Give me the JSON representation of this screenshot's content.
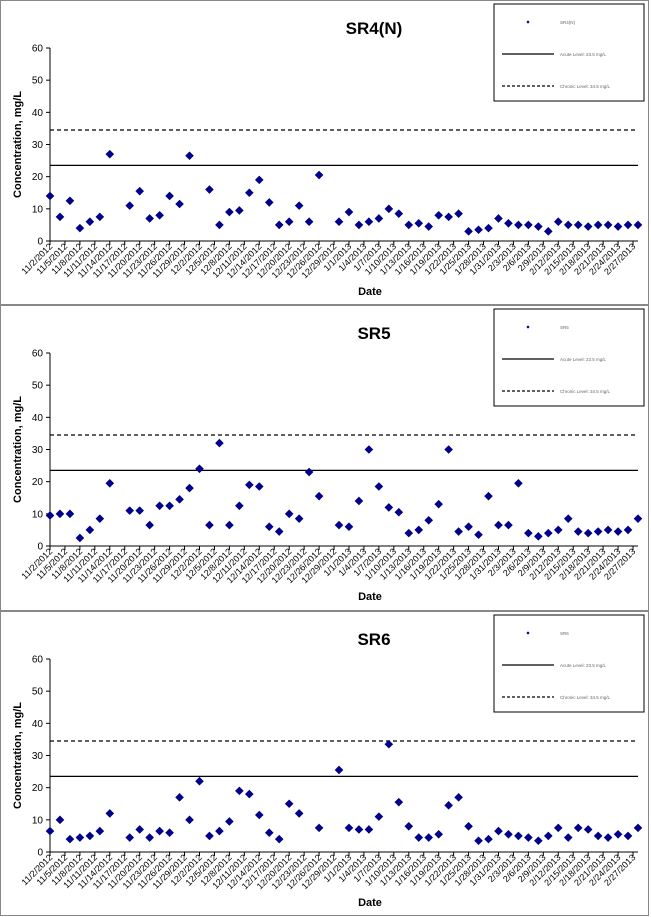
{
  "chart_data": [
    {
      "type": "scatter",
      "title": "SR4(N)",
      "xlabel": "Date",
      "ylabel": "Concentration, mg/L",
      "ylim": [
        0,
        60
      ],
      "yticks": [
        0,
        10,
        20,
        30,
        40,
        50,
        60
      ],
      "xtick_labels": [
        "11/2/2012",
        "11/5/2012",
        "11/8/2012",
        "11/11/2012",
        "11/14/2012",
        "11/17/2012",
        "11/20/2012",
        "11/23/2012",
        "11/26/2012",
        "11/29/2012",
        "12/2/2012",
        "12/5/2012",
        "12/8/2012",
        "12/11/2012",
        "12/14/2012",
        "12/17/2012",
        "12/20/2012",
        "12/23/2012",
        "12/26/2012",
        "12/29/2012",
        "1/1/2013",
        "1/4/2013",
        "1/7/2013",
        "1/10/2013",
        "1/13/2013",
        "1/16/2013",
        "1/19/2013",
        "1/22/2013",
        "1/25/2013",
        "1/28/2013",
        "1/31/2013",
        "2/3/2013",
        "2/6/2013",
        "2/9/2013",
        "2/12/2013",
        "2/15/2013",
        "2/18/2013",
        "2/21/2013",
        "2/24/2013",
        "2/27/2013"
      ],
      "legend": {
        "position": "top-right",
        "entries": [
          "SR4(N)",
          "Acute Level: 23.5 mg/L",
          "Chronic Level: 34.5 mg/L"
        ]
      },
      "reference_lines": [
        {
          "value": 23.5,
          "style": "solid"
        },
        {
          "value": 34.5,
          "style": "dashed"
        }
      ],
      "series": [
        {
          "name": "SR4(N)",
          "marker": "diamond",
          "color": "#00008b",
          "x": [
            "11/2/2012",
            "11/4/2012",
            "11/6/2012",
            "11/8/2012",
            "11/10/2012",
            "11/12/2012",
            "11/14/2012",
            "11/18/2012",
            "11/20/2012",
            "11/22/2012",
            "11/24/2012",
            "11/26/2012",
            "11/28/2012",
            "11/30/2012",
            "12/4/2012",
            "12/6/2012",
            "12/8/2012",
            "12/10/2012",
            "12/12/2012",
            "12/14/2012",
            "12/16/2012",
            "12/18/2012",
            "12/20/2012",
            "12/22/2012",
            "12/24/2012",
            "12/26/2012",
            "12/30/2012",
            "1/1/2013",
            "1/3/2013",
            "1/5/2013",
            "1/7/2013",
            "1/9/2013",
            "1/11/2013",
            "1/13/2013",
            "1/15/2013",
            "1/17/2013",
            "1/19/2013",
            "1/21/2013",
            "1/23/2013",
            "1/25/2013",
            "1/27/2013",
            "1/29/2013",
            "1/31/2013",
            "2/2/2013",
            "2/4/2013",
            "2/6/2013",
            "2/8/2013",
            "2/10/2013",
            "2/12/2013",
            "2/14/2013",
            "2/16/2013",
            "2/18/2013",
            "2/20/2013",
            "2/22/2013",
            "2/24/2013",
            "2/26/2013",
            "2/28/2013"
          ],
          "y": [
            14,
            7.5,
            12.5,
            4,
            6,
            7.5,
            27,
            11,
            15.5,
            7,
            8,
            14,
            11.5,
            26.5,
            16,
            5,
            9,
            9.5,
            15,
            19,
            12,
            5,
            6,
            11,
            6,
            20.5,
            6,
            9,
            5,
            6,
            7,
            10,
            8.5,
            5,
            5.5,
            4.5,
            8,
            7.5,
            8.5,
            3,
            3.5,
            4,
            7,
            5.5,
            5,
            5,
            4.5,
            3,
            6,
            5,
            5,
            4.5,
            5,
            5,
            4.5,
            5,
            5
          ]
        }
      ]
    },
    {
      "type": "scatter",
      "title": "SR5",
      "xlabel": "Date",
      "ylabel": "Concentration, mg/L",
      "ylim": [
        0,
        60
      ],
      "yticks": [
        0,
        10,
        20,
        30,
        40,
        50,
        60
      ],
      "xtick_labels": [
        "11/2/2012",
        "11/5/2012",
        "11/8/2012",
        "11/11/2012",
        "11/14/2012",
        "11/17/2012",
        "11/20/2012",
        "11/23/2012",
        "11/26/2012",
        "11/29/2012",
        "12/2/2012",
        "12/5/2012",
        "12/8/2012",
        "12/11/2012",
        "12/14/2012",
        "12/17/2012",
        "12/20/2012",
        "12/23/2012",
        "12/26/2012",
        "12/29/2012",
        "1/1/2013",
        "1/4/2013",
        "1/7/2013",
        "1/10/2013",
        "1/13/2013",
        "1/16/2013",
        "1/19/2013",
        "1/22/2013",
        "1/25/2013",
        "1/28/2013",
        "1/31/2013",
        "2/3/2013",
        "2/6/2013",
        "2/9/2013",
        "2/12/2013",
        "2/15/2013",
        "2/18/2013",
        "2/21/2013",
        "2/24/2013",
        "2/27/2013"
      ],
      "legend": {
        "position": "top-right",
        "entries": [
          "SR5",
          "Acute Level: 23.5 mg/L",
          "Chronic Level: 34.5 mg/L"
        ]
      },
      "reference_lines": [
        {
          "value": 23.5,
          "style": "solid"
        },
        {
          "value": 34.5,
          "style": "dashed"
        }
      ],
      "series": [
        {
          "name": "SR5",
          "marker": "diamond",
          "color": "#00008b",
          "x": [
            "11/2/2012",
            "11/4/2012",
            "11/6/2012",
            "11/8/2012",
            "11/10/2012",
            "11/12/2012",
            "11/14/2012",
            "11/18/2012",
            "11/20/2012",
            "11/22/2012",
            "11/24/2012",
            "11/26/2012",
            "11/28/2012",
            "11/30/2012",
            "12/2/2012",
            "12/4/2012",
            "12/6/2012",
            "12/8/2012",
            "12/10/2012",
            "12/12/2012",
            "12/14/2012",
            "12/16/2012",
            "12/18/2012",
            "12/20/2012",
            "12/22/2012",
            "12/24/2012",
            "12/26/2012",
            "12/30/2012",
            "1/1/2013",
            "1/3/2013",
            "1/5/2013",
            "1/7/2013",
            "1/9/2013",
            "1/11/2013",
            "1/13/2013",
            "1/15/2013",
            "1/17/2013",
            "1/19/2013",
            "1/21/2013",
            "1/23/2013",
            "1/25/2013",
            "1/27/2013",
            "1/29/2013",
            "1/31/2013",
            "2/2/2013",
            "2/4/2013",
            "2/6/2013",
            "2/8/2013",
            "2/10/2013",
            "2/12/2013",
            "2/14/2013",
            "2/16/2013",
            "2/18/2013",
            "2/20/2013",
            "2/22/2013",
            "2/24/2013",
            "2/26/2013",
            "2/28/2013"
          ],
          "y": [
            9.5,
            10,
            10,
            2.5,
            5,
            8.5,
            19.5,
            11,
            11,
            6.5,
            12.5,
            12.5,
            14.5,
            18,
            24,
            6.5,
            32,
            6.5,
            12.5,
            19,
            18.5,
            6,
            4.5,
            10,
            8.5,
            23,
            15.5,
            6.5,
            6,
            14,
            30,
            18.5,
            12,
            10.5,
            4,
            5,
            8,
            13,
            30,
            4.5,
            6,
            3.5,
            15.5,
            6.5,
            6.5,
            19.5,
            4,
            3,
            4,
            5,
            8.5,
            4.5,
            4,
            4.5,
            5,
            4.5,
            5,
            8.5
          ]
        }
      ]
    },
    {
      "type": "scatter",
      "title": "SR6",
      "xlabel": "Date",
      "ylabel": "Concentration, mg/L",
      "ylim": [
        0,
        60
      ],
      "yticks": [
        0,
        10,
        20,
        30,
        40,
        50,
        60
      ],
      "xtick_labels": [
        "11/2/2012",
        "11/5/2012",
        "11/8/2012",
        "11/11/2012",
        "11/14/2012",
        "11/17/2012",
        "11/20/2012",
        "11/23/2012",
        "11/26/2012",
        "11/29/2012",
        "12/2/2012",
        "12/5/2012",
        "12/8/2012",
        "12/11/2012",
        "12/14/2012",
        "12/17/2012",
        "12/20/2012",
        "12/23/2012",
        "12/26/2012",
        "12/29/2012",
        "1/1/2013",
        "1/4/2013",
        "1/7/2013",
        "1/10/2013",
        "1/13/2013",
        "1/16/2013",
        "1/19/2013",
        "1/22/2013",
        "1/25/2013",
        "1/28/2013",
        "1/31/2013",
        "2/3/2013",
        "2/6/2013",
        "2/9/2013",
        "2/12/2013",
        "2/15/2013",
        "2/18/2013",
        "2/21/2013",
        "2/24/2013",
        "2/27/2013"
      ],
      "legend": {
        "position": "top-right",
        "entries": [
          "SR6",
          "Acute Level: 23.5 mg/L",
          "Chronic Level: 34.5 mg/L"
        ]
      },
      "reference_lines": [
        {
          "value": 23.5,
          "style": "solid"
        },
        {
          "value": 34.5,
          "style": "dashed"
        }
      ],
      "series": [
        {
          "name": "SR6",
          "marker": "diamond",
          "color": "#00008b",
          "x": [
            "11/2/2012",
            "11/4/2012",
            "11/6/2012",
            "11/8/2012",
            "11/10/2012",
            "11/12/2012",
            "11/14/2012",
            "11/18/2012",
            "11/20/2012",
            "11/22/2012",
            "11/24/2012",
            "11/26/2012",
            "11/28/2012",
            "11/30/2012",
            "12/2/2012",
            "12/4/2012",
            "12/6/2012",
            "12/8/2012",
            "12/10/2012",
            "12/12/2012",
            "12/14/2012",
            "12/16/2012",
            "12/18/2012",
            "12/20/2012",
            "12/22/2012",
            "12/26/2012",
            "12/30/2012",
            "1/1/2013",
            "1/3/2013",
            "1/5/2013",
            "1/7/2013",
            "1/9/2013",
            "1/11/2013",
            "1/13/2013",
            "1/15/2013",
            "1/17/2013",
            "1/19/2013",
            "1/21/2013",
            "1/23/2013",
            "1/25/2013",
            "1/27/2013",
            "1/29/2013",
            "1/31/2013",
            "2/2/2013",
            "2/4/2013",
            "2/6/2013",
            "2/8/2013",
            "2/10/2013",
            "2/12/2013",
            "2/14/2013",
            "2/16/2013",
            "2/18/2013",
            "2/20/2013",
            "2/22/2013",
            "2/24/2013",
            "2/26/2013",
            "2/28/2013"
          ],
          "y": [
            6.5,
            10,
            4,
            4.5,
            5,
            6.5,
            12,
            4.5,
            7,
            4.5,
            6.5,
            6,
            17,
            10,
            22,
            5,
            6.5,
            9.5,
            19,
            18,
            11.5,
            6,
            4,
            15,
            12,
            7.5,
            25.5,
            7.5,
            7,
            7,
            11,
            33.5,
            15.5,
            8,
            4.5,
            4.5,
            5.5,
            14.5,
            17,
            8,
            3.5,
            4,
            6.5,
            5.5,
            5,
            4.5,
            3.5,
            5,
            7.5,
            4.5,
            7.5,
            7,
            5,
            4.5,
            5.5,
            5,
            7.5
          ]
        }
      ]
    }
  ]
}
